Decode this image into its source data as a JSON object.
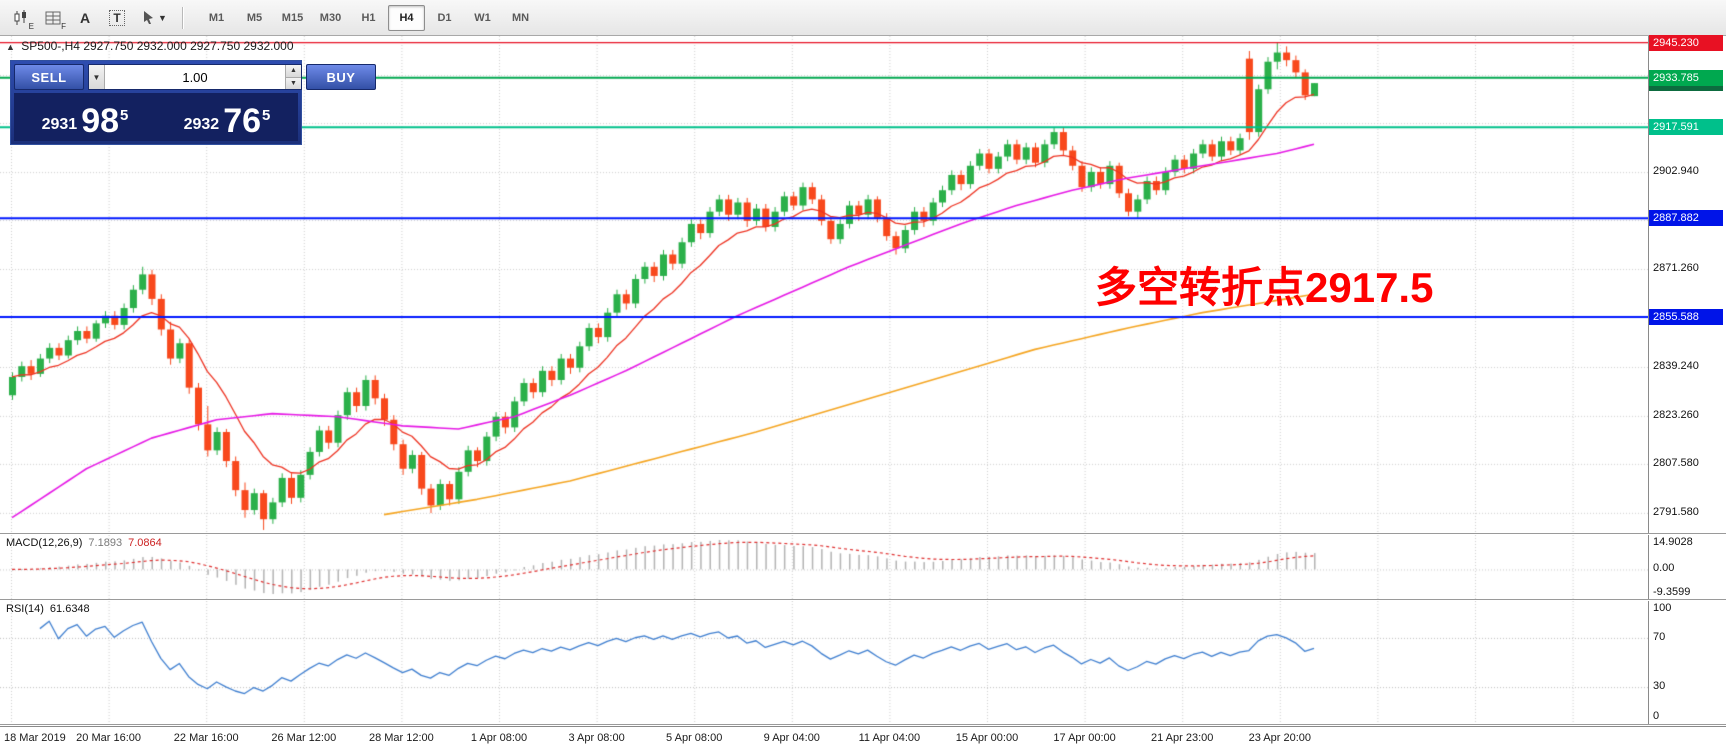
{
  "toolbar": {
    "icons": [
      {
        "name": "candlestick-chart-icon",
        "sub": "E"
      },
      {
        "name": "chart-grid-icon",
        "sub": "F"
      },
      {
        "name": "text-annotation-icon",
        "glyph": "A"
      },
      {
        "name": "text-box-icon",
        "glyph": "T"
      },
      {
        "name": "drawing-tools-icon"
      }
    ],
    "timeframes": [
      "M1",
      "M5",
      "M15",
      "M30",
      "H1",
      "H4",
      "D1",
      "W1",
      "MN"
    ],
    "selected_timeframe": "H4"
  },
  "chart": {
    "symbol_period": "SP500-,H4",
    "ohlc": "2927.750 2932.000 2927.750 2932.000",
    "annotation": {
      "text": "多空转折点2917.5",
      "color": "#ff0000"
    }
  },
  "trade_panel": {
    "sell_label": "SELL",
    "buy_label": "BUY",
    "volume": "1.00",
    "sell_price": {
      "big": "2931",
      "mid": "98",
      "sup": "5"
    },
    "buy_price": {
      "big": "2932",
      "mid": "76",
      "sup": "5"
    }
  },
  "price_axis": {
    "labels": [
      {
        "text": "2902.940",
        "price": 2902.94
      },
      {
        "text": "2871.260",
        "price": 2871.26
      },
      {
        "text": "2839.240",
        "price": 2839.24
      },
      {
        "text": "2823.260",
        "price": 2823.26
      },
      {
        "text": "2807.580",
        "price": 2807.58
      },
      {
        "text": "2791.580",
        "price": 2791.58
      }
    ],
    "badges": [
      {
        "text": "2932.000",
        "price": 2932.0,
        "bg": "#0d6b3f",
        "z": 1
      },
      {
        "text": "2945.230",
        "price": 2945.23,
        "bg": "#e81123",
        "z": 2
      },
      {
        "text": "2933.785",
        "price": 2933.785,
        "bg": "#00a84f",
        "z": 2
      },
      {
        "text": "2917.591",
        "price": 2917.591,
        "bg": "#00c08b",
        "z": 2
      },
      {
        "text": "2887.882",
        "price": 2887.882,
        "bg": "#0014e8",
        "z": 2
      },
      {
        "text": "2855.588",
        "price": 2855.588,
        "bg": "#0014e8",
        "z": 2
      }
    ]
  },
  "hlines": [
    {
      "price": 2945.23,
      "color": "#e81123",
      "width": 1.4
    },
    {
      "price": 2933.785,
      "color": "#00a84f",
      "width": 2
    },
    {
      "price": 2917.591,
      "color": "#00c08b",
      "width": 2
    },
    {
      "price": 2887.882,
      "color": "#0018ff",
      "width": 2
    },
    {
      "price": 2855.588,
      "color": "#0018ff",
      "width": 2
    }
  ],
  "macd": {
    "label": "MACD(12,26,9)",
    "value_main": "7.1893",
    "value_signal": "7.0864",
    "axis": [
      "14.9028",
      "0.00",
      "-9.3599"
    ]
  },
  "rsi": {
    "label": "RSI(14)",
    "value": "61.6348",
    "axis": [
      "100",
      "70",
      "30",
      "0"
    ],
    "levels": [
      70,
      30
    ]
  },
  "date_axis": [
    "18 Mar 2019",
    "20 Mar 16:00",
    "22 Mar 16:00",
    "26 Mar 12:00",
    "28 Mar 12:00",
    "1 Apr 08:00",
    "3 Apr 08:00",
    "5 Apr 08:00",
    "9 Apr 04:00",
    "11 Apr 04:00",
    "15 Apr 00:00",
    "17 Apr 00:00",
    "21 Apr 23:00",
    "23 Apr 20:00"
  ],
  "chart_data": {
    "type": "candlestick",
    "symbol": "SP500-",
    "period": "H4",
    "title": "SP500-,H4 2927.750 2932.000 2927.750 2932.000",
    "price_range": {
      "top": 2947.4,
      "bottom": 2785.0
    },
    "grid_prices": [
      2934.62,
      2918.94,
      2902.94,
      2887.26,
      2871.26,
      2855.58,
      2839.24,
      2823.26,
      2807.58,
      2791.58
    ],
    "colors": {
      "up": "#2bb04a",
      "down": "#f8481c",
      "ema": "#ee3322",
      "ma_mid": "#e619e6",
      "ma_slow": "#f5a623",
      "macd_hist": "#b4b4b4",
      "macd_signal": "#e03030",
      "rsi": "#3f7fd0",
      "grid": "#cfcfcf"
    },
    "candles": [
      [
        2830,
        2837.5,
        2828.5,
        2836
      ],
      [
        2836,
        2841,
        2834.5,
        2839.5
      ],
      [
        2839.5,
        2841.5,
        2835,
        2837
      ],
      [
        2837,
        2843.5,
        2836,
        2842
      ],
      [
        2842,
        2847,
        2840.5,
        2845.5
      ],
      [
        2845.5,
        2847,
        2841.5,
        2843
      ],
      [
        2843,
        2849.5,
        2842,
        2848
      ],
      [
        2848,
        2852.5,
        2846.5,
        2851
      ],
      [
        2851,
        2852.5,
        2847,
        2848.5
      ],
      [
        2848.5,
        2854.5,
        2847.5,
        2853.5
      ],
      [
        2853.5,
        2857.5,
        2852,
        2856
      ],
      [
        2856,
        2857.5,
        2851.5,
        2853
      ],
      [
        2853,
        2860,
        2851.5,
        2858.5
      ],
      [
        2858.5,
        2866,
        2857,
        2864.5
      ],
      [
        2864.5,
        2872,
        2863,
        2869.5
      ],
      [
        2869.5,
        2871,
        2859.5,
        2861.5
      ],
      [
        2861.5,
        2863,
        2849.5,
        2851.5
      ],
      [
        2851.5,
        2854,
        2840,
        2842
      ],
      [
        2842,
        2848.5,
        2840.5,
        2847
      ],
      [
        2847,
        2848,
        2830.5,
        2832.5
      ],
      [
        2832.5,
        2834,
        2818.5,
        2820.5
      ],
      [
        2820.5,
        2826.5,
        2810,
        2812
      ],
      [
        2812,
        2819.5,
        2810.5,
        2818
      ],
      [
        2818,
        2819,
        2806.5,
        2808.5
      ],
      [
        2808.5,
        2810,
        2797,
        2799
      ],
      [
        2799,
        2801.5,
        2790,
        2792.5
      ],
      [
        2792.5,
        2799.5,
        2791,
        2798
      ],
      [
        2798,
        2799,
        2786,
        2789.5
      ],
      [
        2789.5,
        2796.5,
        2788,
        2795
      ],
      [
        2795,
        2804.5,
        2793.5,
        2803
      ],
      [
        2803,
        2804.5,
        2794.5,
        2796.5
      ],
      [
        2796.5,
        2805.5,
        2795,
        2804
      ],
      [
        2804,
        2813,
        2802.5,
        2811.5
      ],
      [
        2811.5,
        2820,
        2810,
        2818.5
      ],
      [
        2818.5,
        2820,
        2812.5,
        2814.5
      ],
      [
        2814.5,
        2825,
        2813,
        2823.5
      ],
      [
        2823.5,
        2832.5,
        2822,
        2831
      ],
      [
        2831,
        2832.5,
        2824.5,
        2826.5
      ],
      [
        2826.5,
        2836.5,
        2825,
        2835
      ],
      [
        2835,
        2836.5,
        2827,
        2829
      ],
      [
        2829,
        2830.5,
        2820,
        2822
      ],
      [
        2822,
        2823.5,
        2812,
        2814
      ],
      [
        2814,
        2815.5,
        2804,
        2806
      ],
      [
        2806,
        2812,
        2804.5,
        2810.5
      ],
      [
        2810.5,
        2811.5,
        2797.5,
        2799.5
      ],
      [
        2799.5,
        2801,
        2791.5,
        2794
      ],
      [
        2794,
        2802.5,
        2792.5,
        2801
      ],
      [
        2801,
        2802,
        2794,
        2796
      ],
      [
        2796,
        2806.5,
        2794.5,
        2805
      ],
      [
        2805,
        2813.5,
        2803.5,
        2812
      ],
      [
        2812,
        2813,
        2806.5,
        2808.5
      ],
      [
        2808.5,
        2818,
        2807,
        2816.5
      ],
      [
        2816.5,
        2824.5,
        2815,
        2823
      ],
      [
        2823,
        2824.5,
        2817.5,
        2819.5
      ],
      [
        2819.5,
        2829.5,
        2818,
        2828
      ],
      [
        2828,
        2835.5,
        2826.5,
        2834
      ],
      [
        2834,
        2835.5,
        2829,
        2831
      ],
      [
        2831,
        2839.5,
        2829.5,
        2838
      ],
      [
        2838,
        2839.5,
        2833,
        2835
      ],
      [
        2835,
        2843.5,
        2833.5,
        2842
      ],
      [
        2842,
        2843.5,
        2837,
        2839
      ],
      [
        2839,
        2847.5,
        2837.5,
        2846
      ],
      [
        2846,
        2853.5,
        2844.5,
        2852
      ],
      [
        2852,
        2853.5,
        2847,
        2849
      ],
      [
        2849,
        2858.5,
        2847.5,
        2857
      ],
      [
        2857,
        2864.5,
        2855.5,
        2863
      ],
      [
        2863,
        2864.5,
        2858,
        2860
      ],
      [
        2860,
        2869.5,
        2858.5,
        2868
      ],
      [
        2868,
        2873.5,
        2866.5,
        2872
      ],
      [
        2872,
        2873.5,
        2867,
        2869
      ],
      [
        2869,
        2877.5,
        2867.5,
        2876
      ],
      [
        2876,
        2877.5,
        2871,
        2873
      ],
      [
        2873,
        2881.5,
        2871.5,
        2880
      ],
      [
        2880,
        2887.5,
        2878.5,
        2886
      ],
      [
        2886,
        2887.5,
        2881,
        2883
      ],
      [
        2883,
        2891.5,
        2881.5,
        2890
      ],
      [
        2890,
        2895.5,
        2888.5,
        2894
      ],
      [
        2894,
        2895.5,
        2887,
        2889
      ],
      [
        2889,
        2894.5,
        2887.5,
        2893
      ],
      [
        2893,
        2894.5,
        2885,
        2887
      ],
      [
        2887,
        2892.5,
        2885.5,
        2891
      ],
      [
        2891,
        2892.5,
        2883.5,
        2885
      ],
      [
        2885,
        2891.5,
        2883.5,
        2890
      ],
      [
        2890,
        2896.5,
        2888.5,
        2895
      ],
      [
        2895,
        2896.5,
        2890.5,
        2892
      ],
      [
        2892,
        2899.5,
        2890.5,
        2898
      ],
      [
        2898,
        2899.5,
        2892.5,
        2894
      ],
      [
        2894,
        2895.5,
        2885.5,
        2887
      ],
      [
        2887,
        2888.5,
        2879.5,
        2881
      ],
      [
        2881,
        2887.5,
        2879.5,
        2886
      ],
      [
        2886,
        2893.5,
        2884.5,
        2892
      ],
      [
        2892,
        2893.5,
        2887,
        2889
      ],
      [
        2889,
        2895.5,
        2887.5,
        2894
      ],
      [
        2894,
        2895,
        2886.5,
        2888
      ],
      [
        2888,
        2889.5,
        2880.5,
        2882
      ],
      [
        2882,
        2883.5,
        2876,
        2878
      ],
      [
        2878,
        2885.5,
        2876.5,
        2884
      ],
      [
        2884,
        2891.5,
        2882.5,
        2890
      ],
      [
        2890,
        2891.5,
        2885,
        2887
      ],
      [
        2887,
        2894.5,
        2885.5,
        2893
      ],
      [
        2893,
        2898.5,
        2891.5,
        2897
      ],
      [
        2897,
        2903.5,
        2895.5,
        2902
      ],
      [
        2902,
        2903.5,
        2897,
        2899
      ],
      [
        2899,
        2906.5,
        2897.5,
        2905
      ],
      [
        2905,
        2910.5,
        2903.5,
        2909
      ],
      [
        2909,
        2910.5,
        2902.5,
        2904
      ],
      [
        2904,
        2909.5,
        2902.5,
        2908
      ],
      [
        2908,
        2913.5,
        2906.5,
        2912
      ],
      [
        2912,
        2913.5,
        2905.5,
        2907
      ],
      [
        2907,
        2912.5,
        2905.5,
        2911
      ],
      [
        2911,
        2912.5,
        2904.5,
        2906
      ],
      [
        2906,
        2913.5,
        2904.5,
        2912
      ],
      [
        2912,
        2917.5,
        2910.5,
        2916
      ],
      [
        2916,
        2917.5,
        2908.5,
        2910
      ],
      [
        2910,
        2911.5,
        2903.5,
        2905
      ],
      [
        2905,
        2906.5,
        2896.5,
        2898
      ],
      [
        2898,
        2904.5,
        2896.5,
        2903
      ],
      [
        2903,
        2904.5,
        2897.5,
        2899
      ],
      [
        2899,
        2906.5,
        2897.5,
        2905
      ],
      [
        2905,
        2906,
        2894.5,
        2896
      ],
      [
        2896,
        2897.5,
        2888.5,
        2890
      ],
      [
        2890,
        2895.5,
        2888,
        2894
      ],
      [
        2894,
        2901.5,
        2892.5,
        2900
      ],
      [
        2900,
        2901.5,
        2895.5,
        2897
      ],
      [
        2897,
        2904.5,
        2895.5,
        2903
      ],
      [
        2903,
        2908.5,
        2901.5,
        2907
      ],
      [
        2907,
        2908.5,
        2902.5,
        2904
      ],
      [
        2904,
        2910.5,
        2902.5,
        2909
      ],
      [
        2909,
        2913.5,
        2907.5,
        2912
      ],
      [
        2912,
        2913.5,
        2906.5,
        2908
      ],
      [
        2908,
        2914.5,
        2906.5,
        2913
      ],
      [
        2913,
        2914.5,
        2908.5,
        2910
      ],
      [
        2910,
        2915.5,
        2908.5,
        2914
      ],
      [
        2940,
        2942.5,
        2913.5,
        2916
      ],
      [
        2916,
        2931.5,
        2914.5,
        2930
      ],
      [
        2930,
        2940.5,
        2928.5,
        2939
      ],
      [
        2939,
        2945.2,
        2936.5,
        2942
      ],
      [
        2942,
        2944,
        2937.5,
        2939.5
      ],
      [
        2939.5,
        2941,
        2934,
        2935.5
      ],
      [
        2935.5,
        2936.5,
        2926.5,
        2928
      ],
      [
        2927.75,
        2932,
        2927.75,
        2932
      ]
    ],
    "ma_mid_points": [
      [
        0,
        2790
      ],
      [
        8,
        2806
      ],
      [
        15,
        2816
      ],
      [
        22,
        2822
      ],
      [
        28,
        2824
      ],
      [
        35,
        2823
      ],
      [
        42,
        2820
      ],
      [
        48,
        2819
      ],
      [
        54,
        2823
      ],
      [
        60,
        2830
      ],
      [
        66,
        2838
      ],
      [
        72,
        2847
      ],
      [
        78,
        2856
      ],
      [
        84,
        2864
      ],
      [
        90,
        2872
      ],
      [
        96,
        2879
      ],
      [
        102,
        2886
      ],
      [
        108,
        2892
      ],
      [
        114,
        2897
      ],
      [
        120,
        2901
      ],
      [
        126,
        2904
      ],
      [
        132,
        2907
      ],
      [
        136,
        2909
      ],
      [
        140,
        2912
      ]
    ],
    "ma_slow_points": [
      [
        40,
        2791
      ],
      [
        50,
        2796
      ],
      [
        60,
        2802
      ],
      [
        70,
        2810
      ],
      [
        80,
        2818
      ],
      [
        90,
        2827
      ],
      [
        100,
        2836
      ],
      [
        110,
        2845
      ],
      [
        120,
        2852
      ],
      [
        128,
        2857
      ],
      [
        134,
        2860
      ],
      [
        140,
        2863
      ]
    ]
  }
}
